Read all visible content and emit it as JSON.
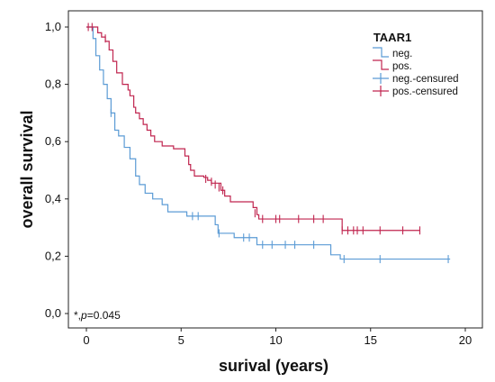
{
  "chart_data": {
    "type": "line",
    "subtype": "kaplan-meier step plot",
    "xlabel": "surival (years)",
    "ylabel": "overall survival",
    "xlim": [
      0,
      20
    ],
    "ylim": [
      0,
      1
    ],
    "xticks": [
      "0",
      "5",
      "10",
      "15",
      "20"
    ],
    "yticks": [
      "0,0",
      "0,2",
      "0,4",
      "0,6",
      "0,8",
      "1,0"
    ],
    "annotation_star": "*,",
    "annotation_p": "p",
    "annotation_value": "=0.045",
    "grid": false,
    "legend": {
      "title": "TAAR1",
      "position": "top-right",
      "entries": [
        "neg.",
        "pos.",
        "neg.-censured",
        "pos.-censured"
      ]
    },
    "colors": {
      "neg": "#5b9bd5",
      "pos": "#c0254f"
    },
    "series": [
      {
        "name": "neg.",
        "steps": [
          [
            0,
            1.0
          ],
          [
            0.35,
            0.96
          ],
          [
            0.5,
            0.9
          ],
          [
            0.7,
            0.85
          ],
          [
            0.9,
            0.8
          ],
          [
            1.1,
            0.75
          ],
          [
            1.3,
            0.7
          ],
          [
            1.5,
            0.64
          ],
          [
            1.7,
            0.62
          ],
          [
            2.0,
            0.58
          ],
          [
            2.3,
            0.54
          ],
          [
            2.6,
            0.48
          ],
          [
            2.8,
            0.45
          ],
          [
            3.1,
            0.42
          ],
          [
            3.5,
            0.4
          ],
          [
            4.0,
            0.38
          ],
          [
            4.3,
            0.355
          ],
          [
            5.3,
            0.34
          ],
          [
            6.5,
            0.34
          ],
          [
            6.8,
            0.31
          ],
          [
            6.95,
            0.28
          ],
          [
            7.8,
            0.265
          ],
          [
            9.0,
            0.24
          ],
          [
            12.8,
            0.24
          ],
          [
            12.9,
            0.205
          ],
          [
            13.4,
            0.19
          ],
          [
            19.2,
            0.19
          ]
        ],
        "censored": [
          [
            1.3,
            0.7
          ],
          [
            5.6,
            0.34
          ],
          [
            5.9,
            0.34
          ],
          [
            7.0,
            0.28
          ],
          [
            8.3,
            0.265
          ],
          [
            8.6,
            0.265
          ],
          [
            9.3,
            0.24
          ],
          [
            9.8,
            0.24
          ],
          [
            10.5,
            0.24
          ],
          [
            11.0,
            0.24
          ],
          [
            12.0,
            0.24
          ],
          [
            13.6,
            0.19
          ],
          [
            15.5,
            0.19
          ],
          [
            19.1,
            0.19
          ]
        ]
      },
      {
        "name": "pos.",
        "steps": [
          [
            0,
            1.0
          ],
          [
            0.6,
            0.98
          ],
          [
            0.8,
            0.965
          ],
          [
            1.0,
            0.95
          ],
          [
            1.2,
            0.92
          ],
          [
            1.4,
            0.88
          ],
          [
            1.6,
            0.84
          ],
          [
            1.9,
            0.8
          ],
          [
            2.2,
            0.78
          ],
          [
            2.3,
            0.76
          ],
          [
            2.5,
            0.72
          ],
          [
            2.6,
            0.7
          ],
          [
            2.8,
            0.68
          ],
          [
            3.0,
            0.66
          ],
          [
            3.2,
            0.64
          ],
          [
            3.4,
            0.62
          ],
          [
            3.6,
            0.6
          ],
          [
            4.0,
            0.585
          ],
          [
            4.6,
            0.575
          ],
          [
            5.2,
            0.55
          ],
          [
            5.4,
            0.52
          ],
          [
            5.5,
            0.5
          ],
          [
            5.7,
            0.48
          ],
          [
            6.2,
            0.475
          ],
          [
            6.4,
            0.465
          ],
          [
            6.6,
            0.455
          ],
          [
            7.1,
            0.43
          ],
          [
            7.3,
            0.41
          ],
          [
            7.6,
            0.39
          ],
          [
            8.8,
            0.37
          ],
          [
            9.0,
            0.345
          ],
          [
            9.1,
            0.33
          ],
          [
            13.4,
            0.33
          ],
          [
            13.5,
            0.29
          ],
          [
            17.6,
            0.29
          ]
        ],
        "censored": [
          [
            0.1,
            1.0
          ],
          [
            0.3,
            1.0
          ],
          [
            1.0,
            0.96
          ],
          [
            6.3,
            0.47
          ],
          [
            6.6,
            0.46
          ],
          [
            6.8,
            0.45
          ],
          [
            7.0,
            0.44
          ],
          [
            7.2,
            0.43
          ],
          [
            8.9,
            0.35
          ],
          [
            9.3,
            0.33
          ],
          [
            10.0,
            0.33
          ],
          [
            10.2,
            0.33
          ],
          [
            11.2,
            0.33
          ],
          [
            12.0,
            0.33
          ],
          [
            12.5,
            0.33
          ],
          [
            13.5,
            0.29
          ],
          [
            13.8,
            0.29
          ],
          [
            14.1,
            0.29
          ],
          [
            14.3,
            0.29
          ],
          [
            14.6,
            0.29
          ],
          [
            15.5,
            0.29
          ],
          [
            16.7,
            0.29
          ],
          [
            17.6,
            0.29
          ]
        ]
      }
    ]
  }
}
